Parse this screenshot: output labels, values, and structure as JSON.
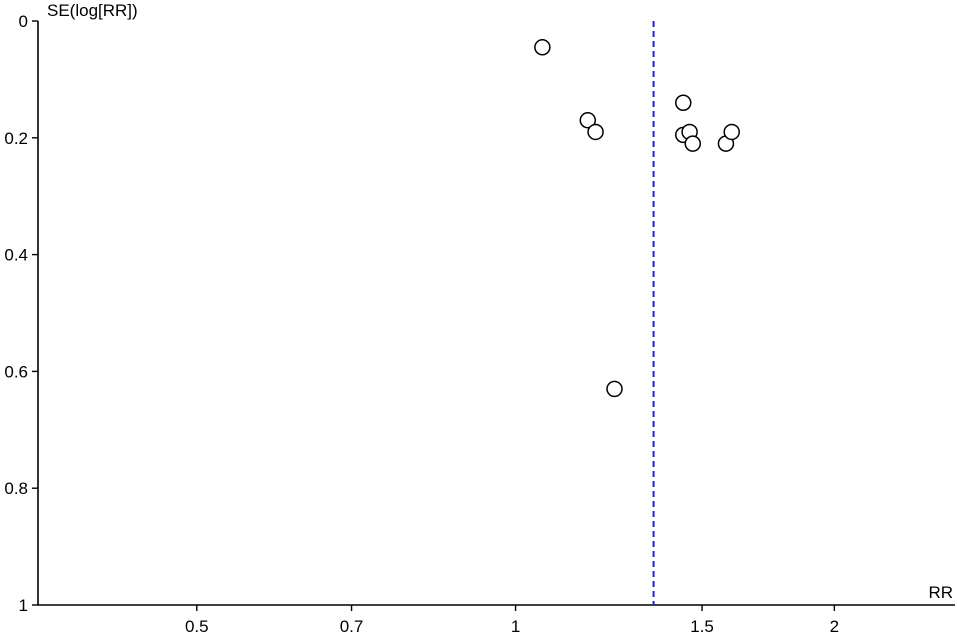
{
  "chart_data": {
    "type": "scatter",
    "subtype": "funnel",
    "xlabel": "RR",
    "ylabel": "SE(log[RR])",
    "x_scale": "log",
    "y_inverted": true,
    "xlim": [
      0.354,
      2.6
    ],
    "ylim": [
      0,
      1
    ],
    "x_ticks": [
      0.5,
      0.7,
      1,
      1.5,
      2
    ],
    "x_tick_labels": [
      "0.5",
      "0.7",
      "1",
      "1.5",
      "2"
    ],
    "y_ticks": [
      0,
      0.2,
      0.4,
      0.6,
      0.8,
      1
    ],
    "y_tick_labels": [
      "0",
      "0.2",
      "0.4",
      "0.6",
      "0.8",
      "1"
    ],
    "pooled_estimate": 1.35,
    "points": [
      {
        "x": 1.06,
        "y": 0.045
      },
      {
        "x": 1.17,
        "y": 0.17
      },
      {
        "x": 1.19,
        "y": 0.19
      },
      {
        "x": 1.24,
        "y": 0.63
      },
      {
        "x": 1.44,
        "y": 0.14
      },
      {
        "x": 1.44,
        "y": 0.195
      },
      {
        "x": 1.46,
        "y": 0.19
      },
      {
        "x": 1.47,
        "y": 0.21
      },
      {
        "x": 1.58,
        "y": 0.21
      },
      {
        "x": 1.6,
        "y": 0.19
      }
    ],
    "grid": false,
    "colors": {
      "axis": "#000000",
      "pooled_line": "#2222cc",
      "point_stroke": "#000000",
      "point_fill": "#ffffff"
    }
  }
}
